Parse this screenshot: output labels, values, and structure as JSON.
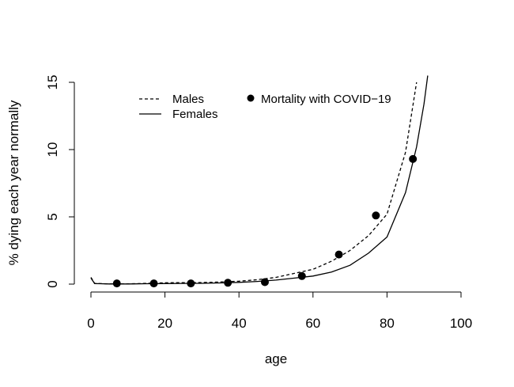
{
  "chart_data": {
    "type": "line",
    "title": "",
    "xlabel": "age",
    "ylabel": "% dying each year normally",
    "xlim": [
      0,
      100
    ],
    "ylim": [
      0,
      15
    ],
    "x_ticks": [
      "0",
      "20",
      "40",
      "60",
      "80",
      "100"
    ],
    "y_ticks": [
      "0",
      "5",
      "10",
      "15"
    ],
    "grid": false,
    "legend_placement": "top",
    "series": [
      {
        "name": "Males",
        "style": "dashed",
        "x": [
          0,
          1,
          5,
          10,
          15,
          20,
          25,
          30,
          35,
          40,
          45,
          50,
          55,
          60,
          65,
          70,
          75,
          80,
          85,
          88
        ],
        "y": [
          0.5,
          0.05,
          0.02,
          0.02,
          0.06,
          0.1,
          0.11,
          0.12,
          0.16,
          0.22,
          0.33,
          0.5,
          0.8,
          1.1,
          1.7,
          2.5,
          3.6,
          5.2,
          9.8,
          15
        ]
      },
      {
        "name": "Females",
        "style": "solid",
        "x": [
          0,
          1,
          5,
          10,
          15,
          20,
          25,
          30,
          35,
          40,
          45,
          50,
          55,
          60,
          65,
          70,
          75,
          80,
          85,
          88,
          90,
          91
        ],
        "y": [
          0.45,
          0.04,
          0.01,
          0.01,
          0.03,
          0.04,
          0.05,
          0.06,
          0.09,
          0.13,
          0.2,
          0.3,
          0.45,
          0.6,
          0.9,
          1.4,
          2.3,
          3.5,
          6.8,
          10.2,
          13.4,
          15.5
        ]
      },
      {
        "name": "Mortality with COVID−19",
        "style": "points",
        "x": [
          7,
          17,
          27,
          37,
          47,
          57,
          67,
          77,
          87
        ],
        "y": [
          0.05,
          0.05,
          0.05,
          0.1,
          0.15,
          0.6,
          2.2,
          5.1,
          9.3
        ]
      }
    ]
  }
}
